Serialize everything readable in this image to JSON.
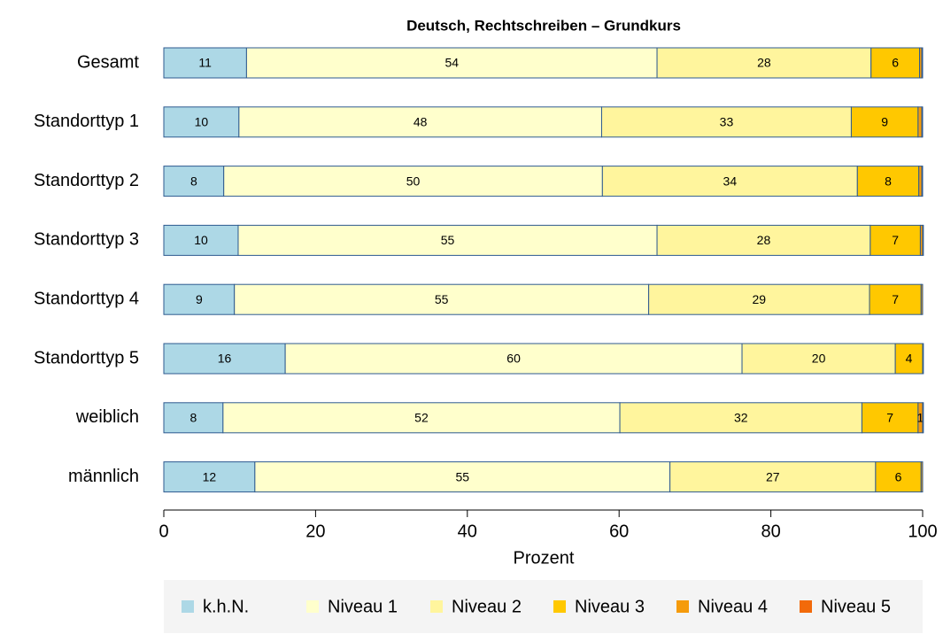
{
  "chart_data": {
    "type": "bar",
    "orientation": "horizontal",
    "stacked": true,
    "title": "Deutsch, Rechtschreiben – Grundkurs",
    "x_label": "Prozent",
    "categories": [
      "Gesamt",
      "Standorttyp 1",
      "Standorttyp 2",
      "Standorttyp 3",
      "Standorttyp 4",
      "Standorttyp 5",
      "weiblich",
      "männlich"
    ],
    "series": [
      {
        "name": "k.h.N.",
        "color": "#add8e6",
        "values": [
          10.9,
          9.9,
          7.9,
          9.8,
          9.3,
          16.0,
          7.8,
          12.0
        ],
        "value_labels": [
          "11",
          "10",
          "8",
          "10",
          "9",
          "16",
          "8",
          "12"
        ]
      },
      {
        "name": "Niveau 1",
        "color": "#ffffcc",
        "values": [
          54.1,
          47.8,
          49.9,
          55.2,
          54.6,
          60.2,
          52.3,
          54.7
        ],
        "value_labels": [
          "54",
          "48",
          "50",
          "55",
          "55",
          "60",
          "52",
          "55"
        ]
      },
      {
        "name": "Niveau 2",
        "color": "#fff59d",
        "values": [
          28.2,
          32.9,
          33.6,
          28.1,
          29.1,
          20.2,
          31.9,
          27.1
        ],
        "value_labels": [
          "28",
          "33",
          "34",
          "28",
          "29",
          "20",
          "32",
          "27"
        ]
      },
      {
        "name": "Niveau 3",
        "color": "#ffc800",
        "values": [
          6.4,
          8.8,
          8.1,
          6.6,
          6.8,
          3.6,
          7.4,
          6.0
        ],
        "value_labels": [
          "6",
          "9",
          "8",
          "7",
          "7",
          "4",
          "7",
          "6"
        ]
      },
      {
        "name": "Niveau 4",
        "color": "#f59b0c",
        "values": [
          0.3,
          0.5,
          0.4,
          0.3,
          0.2,
          0.1,
          0.6,
          0.2
        ],
        "value_labels": [
          null,
          null,
          null,
          null,
          null,
          null,
          "1",
          null
        ]
      },
      {
        "name": "Niveau 5",
        "color": "#f26a0a",
        "values": [
          0.1,
          0.1,
          0.1,
          0.1,
          0.0,
          0.0,
          0.1,
          0.0
        ],
        "value_labels": [
          null,
          null,
          null,
          null,
          null,
          null,
          null,
          null
        ]
      }
    ],
    "xlim": [
      0,
      100
    ],
    "xticks": [
      0,
      20,
      40,
      60,
      80,
      100
    ],
    "legend": "bottom"
  }
}
